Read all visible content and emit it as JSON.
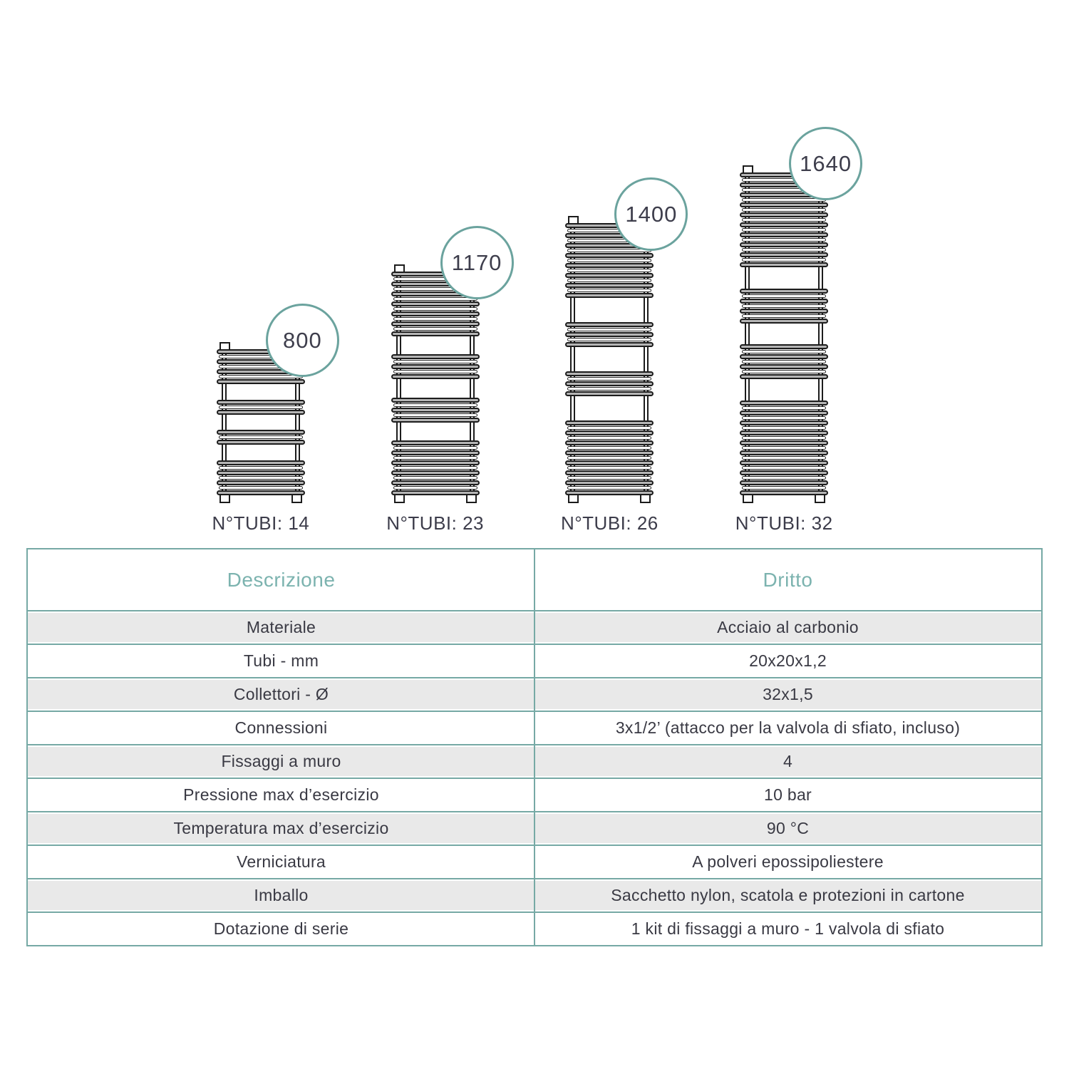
{
  "colors": {
    "table_border_teal": "#76a9a5",
    "header_text_teal": "#7cb3af",
    "badge_ring_teal": "#6ba39e",
    "dark_text": "#3c3c4a",
    "row_gray": "#e9e9e9",
    "tube_gray": "#b5b5b5",
    "outline_dark": "#1c1c1c"
  },
  "radiators": [
    {
      "height_mm": "800",
      "tubes_label": "N°TUBI: 14",
      "tube_count": 14,
      "groups": [
        4,
        2,
        2,
        4
      ]
    },
    {
      "height_mm": "1170",
      "tubes_label": "N°TUBI: 23",
      "tube_count": 23,
      "groups": [
        7,
        3,
        3,
        6
      ]
    },
    {
      "height_mm": "1400",
      "tubes_label": "N°TUBI: 26",
      "tube_count": 26,
      "groups": [
        8,
        3,
        3,
        8
      ]
    },
    {
      "height_mm": "1640",
      "tubes_label": "N°TUBI: 32",
      "tube_count": 32,
      "groups": [
        10,
        4,
        4,
        10
      ]
    }
  ],
  "table": {
    "header": {
      "col1": "Descrizione",
      "col2": "Dritto"
    },
    "rows": [
      {
        "label": "Materiale",
        "value": "Acciaio al carbonio"
      },
      {
        "label": "Tubi - mm",
        "value": "20x20x1,2"
      },
      {
        "label": "Collettori - Ø",
        "value": "32x1,5"
      },
      {
        "label": "Connessioni",
        "value": "3x1/2’ (attacco per la valvola di sfiato, incluso)"
      },
      {
        "label": "Fissaggi a muro",
        "value": "4"
      },
      {
        "label": "Pressione max d’esercizio",
        "value": "10 bar"
      },
      {
        "label": "Temperatura max d’esercizio",
        "value": "90 °C"
      },
      {
        "label": "Verniciatura",
        "value": "A polveri epossipoliestere"
      },
      {
        "label": "Imballo",
        "value": "Sacchetto nylon, scatola e protezioni in cartone"
      },
      {
        "label": "Dotazione di serie",
        "value": "1 kit di fissaggi a muro - 1 valvola di sfiato"
      }
    ]
  }
}
